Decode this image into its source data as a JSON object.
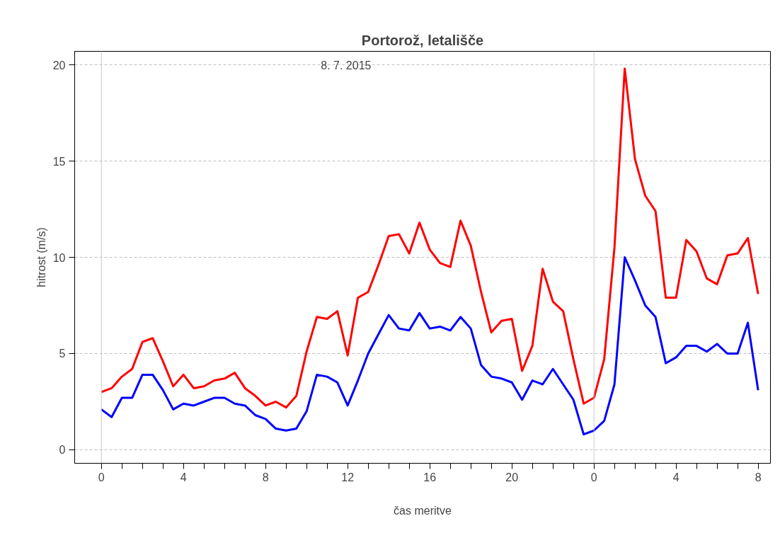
{
  "chart_data": {
    "type": "line",
    "title": "Portorož, letališče",
    "xlabel": "čas meritve",
    "ylabel": "hitrost (m/s)",
    "annotations": [
      "8. 7. 2015"
    ],
    "x": [
      "2015-07-08T00:00",
      "2015-07-08T00:30",
      "2015-07-08T01:00",
      "2015-07-08T01:30",
      "2015-07-08T02:00",
      "2015-07-08T02:30",
      "2015-07-08T03:00",
      "2015-07-08T03:30",
      "2015-07-08T04:00",
      "2015-07-08T04:30",
      "2015-07-08T05:00",
      "2015-07-08T05:30",
      "2015-07-08T06:00",
      "2015-07-08T06:30",
      "2015-07-08T07:00",
      "2015-07-08T07:30",
      "2015-07-08T08:00",
      "2015-07-08T08:30",
      "2015-07-08T09:00",
      "2015-07-08T09:30",
      "2015-07-08T10:00",
      "2015-07-08T10:30",
      "2015-07-08T11:00",
      "2015-07-08T11:30",
      "2015-07-08T12:00",
      "2015-07-08T12:30",
      "2015-07-08T13:00",
      "2015-07-08T13:30",
      "2015-07-08T14:00",
      "2015-07-08T14:30",
      "2015-07-08T15:00",
      "2015-07-08T15:30",
      "2015-07-08T16:00",
      "2015-07-08T16:30",
      "2015-07-08T17:00",
      "2015-07-08T17:30",
      "2015-07-08T18:00",
      "2015-07-08T18:30",
      "2015-07-08T19:00",
      "2015-07-08T19:30",
      "2015-07-08T20:00",
      "2015-07-08T20:30",
      "2015-07-08T21:00",
      "2015-07-08T21:30",
      "2015-07-08T22:00",
      "2015-07-08T22:30",
      "2015-07-08T23:00",
      "2015-07-08T23:30",
      "2015-07-09T00:00",
      "2015-07-09T00:30",
      "2015-07-09T01:00",
      "2015-07-09T01:30",
      "2015-07-09T02:00",
      "2015-07-09T02:30",
      "2015-07-09T03:00",
      "2015-07-09T03:30",
      "2015-07-09T04:00",
      "2015-07-09T04:30",
      "2015-07-09T05:00",
      "2015-07-09T05:30",
      "2015-07-09T06:00",
      "2015-07-09T06:30",
      "2015-07-09T07:00",
      "2015-07-09T07:30",
      "2015-07-09T08:00"
    ],
    "series": [
      {
        "color": "#ff0000",
        "values": [
          3.0,
          3.2,
          3.8,
          4.2,
          5.6,
          5.8,
          4.6,
          3.3,
          3.9,
          3.2,
          3.3,
          3.6,
          3.7,
          4.0,
          3.2,
          2.8,
          2.3,
          2.5,
          2.2,
          2.8,
          5.1,
          6.9,
          6.8,
          7.2,
          4.9,
          7.9,
          8.2,
          9.6,
          11.1,
          11.2,
          10.2,
          11.8,
          10.4,
          9.7,
          9.5,
          11.9,
          10.6,
          8.2,
          6.1,
          6.7,
          6.8,
          4.1,
          5.4,
          9.4,
          7.7,
          7.2,
          4.7,
          2.4,
          2.7,
          4.7,
          10.5,
          19.8,
          15.1,
          13.2,
          12.4,
          7.9,
          7.9,
          10.9,
          10.3,
          8.9,
          8.6,
          10.1,
          10.2,
          11.0,
          8.1
        ]
      },
      {
        "color": "#0000ff",
        "values": [
          2.1,
          1.7,
          2.7,
          2.7,
          3.9,
          3.9,
          3.1,
          2.1,
          2.4,
          2.3,
          2.5,
          2.7,
          2.7,
          2.4,
          2.3,
          1.8,
          1.6,
          1.1,
          1.0,
          1.1,
          2.0,
          3.9,
          3.8,
          3.5,
          2.3,
          3.6,
          5.0,
          6.0,
          7.0,
          6.3,
          6.2,
          7.1,
          6.3,
          6.4,
          6.2,
          6.9,
          6.3,
          4.4,
          3.8,
          3.7,
          3.5,
          2.6,
          3.6,
          3.4,
          4.2,
          3.4,
          2.6,
          0.8,
          1.0,
          1.5,
          3.4,
          10.0,
          8.8,
          7.5,
          6.9,
          4.5,
          4.8,
          5.4,
          5.4,
          5.1,
          5.5,
          5.0,
          5.0,
          6.6,
          3.1
        ]
      }
    ],
    "xlim": [
      "2015-07-07T22:42",
      "2015-07-09T08:36"
    ],
    "ylim": [
      -0.7,
      20.7
    ],
    "xticks": [
      {
        "value": "2015-07-08T00:00",
        "label": "0"
      },
      {
        "value": "2015-07-08T01:00",
        "label": null
      },
      {
        "value": "2015-07-08T02:00",
        "label": null
      },
      {
        "value": "2015-07-08T03:00",
        "label": null
      },
      {
        "value": "2015-07-08T04:00",
        "label": "4"
      },
      {
        "value": "2015-07-08T05:00",
        "label": null
      },
      {
        "value": "2015-07-08T06:00",
        "label": null
      },
      {
        "value": "2015-07-08T07:00",
        "label": null
      },
      {
        "value": "2015-07-08T08:00",
        "label": "8"
      },
      {
        "value": "2015-07-08T09:00",
        "label": null
      },
      {
        "value": "2015-07-08T10:00",
        "label": null
      },
      {
        "value": "2015-07-08T11:00",
        "label": null
      },
      {
        "value": "2015-07-08T12:00",
        "label": "12"
      },
      {
        "value": "2015-07-08T13:00",
        "label": null
      },
      {
        "value": "2015-07-08T14:00",
        "label": null
      },
      {
        "value": "2015-07-08T15:00",
        "label": null
      },
      {
        "value": "2015-07-08T16:00",
        "label": "16"
      },
      {
        "value": "2015-07-08T17:00",
        "label": null
      },
      {
        "value": "2015-07-08T18:00",
        "label": null
      },
      {
        "value": "2015-07-08T19:00",
        "label": null
      },
      {
        "value": "2015-07-08T20:00",
        "label": "20"
      },
      {
        "value": "2015-07-08T21:00",
        "label": null
      },
      {
        "value": "2015-07-08T22:00",
        "label": null
      },
      {
        "value": "2015-07-08T23:00",
        "label": null
      },
      {
        "value": "2015-07-09T00:00",
        "label": "0"
      },
      {
        "value": "2015-07-09T01:00",
        "label": null
      },
      {
        "value": "2015-07-09T02:00",
        "label": null
      },
      {
        "value": "2015-07-09T03:00",
        "label": null
      },
      {
        "value": "2015-07-09T04:00",
        "label": "4"
      },
      {
        "value": "2015-07-09T05:00",
        "label": null
      },
      {
        "value": "2015-07-09T06:00",
        "label": null
      },
      {
        "value": "2015-07-09T07:00",
        "label": null
      },
      {
        "value": "2015-07-09T08:00",
        "label": "8"
      }
    ],
    "yticks": [
      0,
      5,
      10,
      15,
      20
    ],
    "ref_lines": [
      {
        "axis": "x",
        "value": "2015-07-08T00:00",
        "color": "#c8c8c8"
      },
      {
        "axis": "x",
        "value": "2015-07-09T00:00",
        "color": "#c8c8c8"
      }
    ],
    "grid": "y",
    "marker": "none",
    "line_style": "solid"
  }
}
